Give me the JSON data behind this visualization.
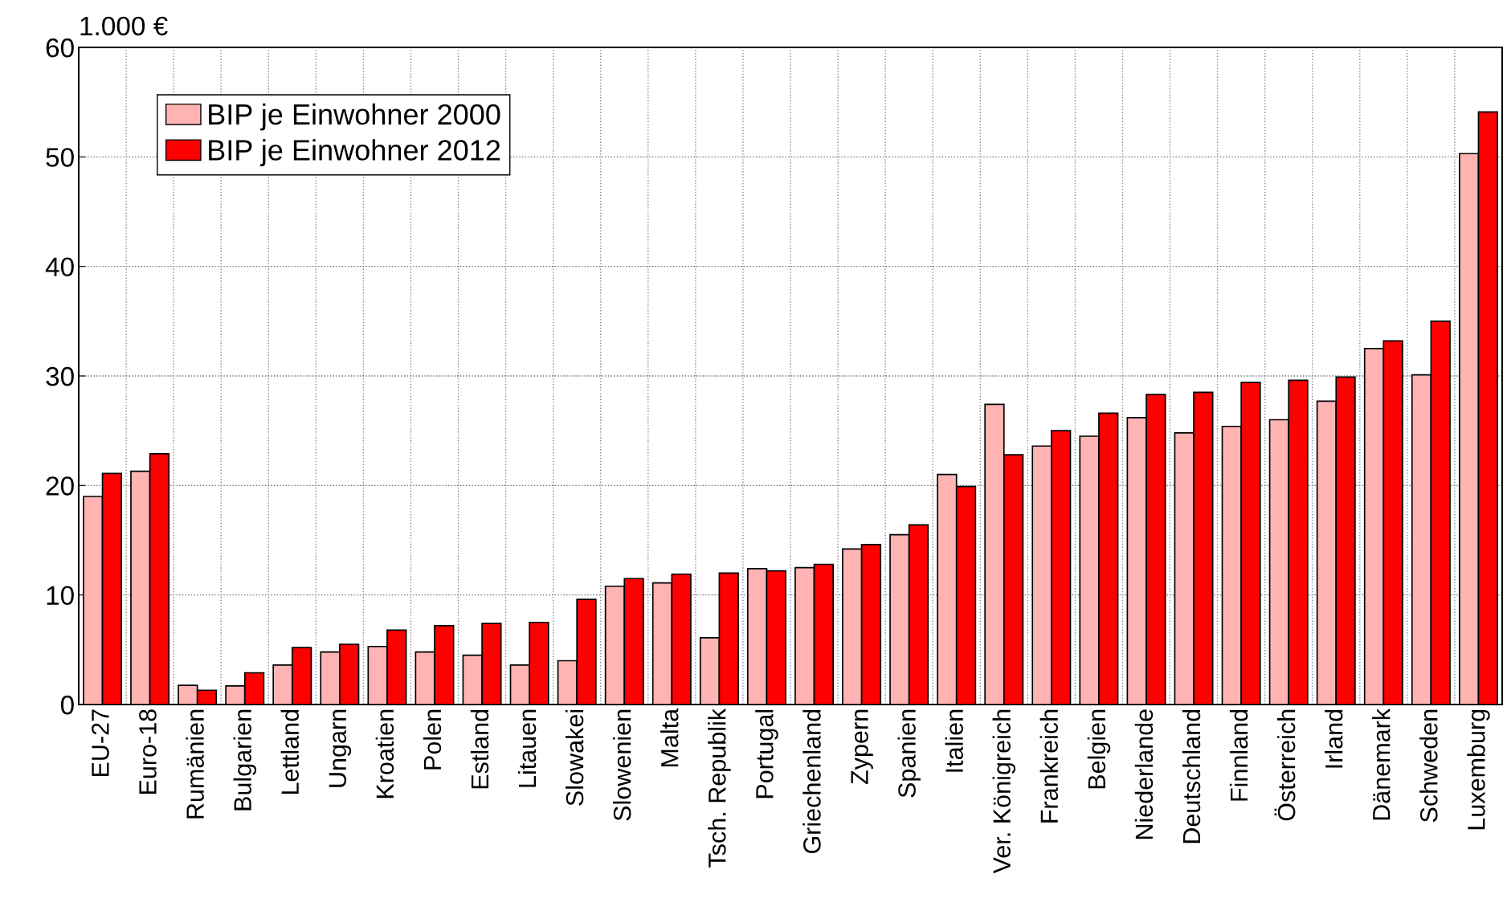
{
  "chart_data": {
    "type": "bar",
    "ylabel": "1.000 €",
    "categories": [
      "EU-27",
      "Euro-18",
      "Rumänien",
      "Bulgarien",
      "Lettland",
      "Ungarn",
      "Kroatien",
      "Polen",
      "Estland",
      "Litauen",
      "Slowakei",
      "Slowenien",
      "Malta",
      "Tsch. Republik",
      "Portugal",
      "Griechenland",
      "Zypern",
      "Spanien",
      "Italien",
      "Ver. Königreich",
      "Frankreich",
      "Belgien",
      "Niederlande",
      "Deutschland",
      "Finnland",
      "Österreich",
      "Irland",
      "Dänemark",
      "Schweden",
      "Luxemburg"
    ],
    "series": [
      {
        "name": "BIP je Einwohner 2000",
        "color": "#ffb3b3",
        "values": [
          19.0,
          21.3,
          1.75,
          1.7,
          3.6,
          4.8,
          5.3,
          4.8,
          4.5,
          3.6,
          4.0,
          10.8,
          11.1,
          6.1,
          12.4,
          12.5,
          14.2,
          15.5,
          21.0,
          27.4,
          23.6,
          24.5,
          26.2,
          24.8,
          25.4,
          26.0,
          27.7,
          32.5,
          30.1,
          50.3
        ]
      },
      {
        "name": "BIP je Einwohner 2012",
        "color": "#ff0000",
        "values": [
          21.1,
          22.9,
          1.3,
          2.9,
          5.2,
          5.5,
          6.8,
          7.2,
          7.4,
          7.5,
          9.6,
          11.5,
          11.9,
          12.0,
          12.2,
          12.8,
          14.6,
          16.4,
          19.9,
          22.8,
          25.0,
          26.6,
          28.3,
          28.5,
          29.4,
          29.6,
          29.9,
          33.2,
          35.0,
          54.1
        ]
      }
    ],
    "ylim": [
      0,
      60
    ],
    "yticks": [
      0,
      10,
      20,
      30,
      40,
      50,
      60
    ],
    "grid": true,
    "legend": "top left"
  }
}
